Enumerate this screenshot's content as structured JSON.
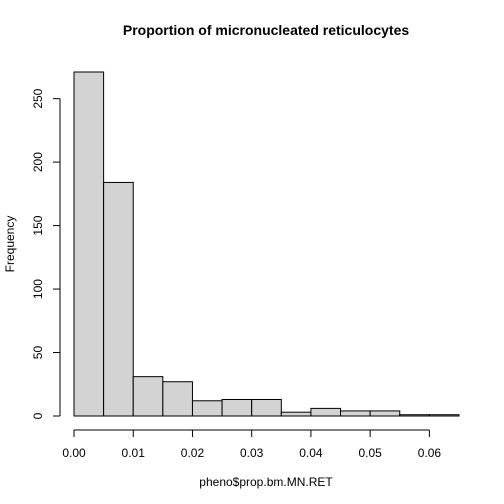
{
  "chart_data": {
    "type": "bar",
    "subtype": "histogram",
    "title": "Proportion of micronucleated reticulocytes",
    "xlabel": "pheno$prop.bm.MN.RET",
    "ylabel": "Frequency",
    "bin_edges": [
      0.0,
      0.005,
      0.01,
      0.015,
      0.02,
      0.025,
      0.03,
      0.035,
      0.04,
      0.045,
      0.05,
      0.055,
      0.06,
      0.065
    ],
    "values": [
      271,
      184,
      31,
      27,
      12,
      13,
      13,
      3,
      6,
      4,
      4,
      1,
      1
    ],
    "xlim": [
      0.0,
      0.065
    ],
    "ylim": [
      0,
      271
    ],
    "x_ticks": [
      0.0,
      0.01,
      0.02,
      0.03,
      0.04,
      0.05,
      0.06
    ],
    "x_tick_labels": [
      "0.00",
      "0.01",
      "0.02",
      "0.03",
      "0.04",
      "0.05",
      "0.06"
    ],
    "y_ticks": [
      0,
      50,
      100,
      150,
      200,
      250
    ],
    "y_tick_labels": [
      "0",
      "50",
      "100",
      "150",
      "200",
      "250"
    ],
    "bar_fill": "#d3d3d3",
    "bar_stroke": "#000000",
    "grid": false,
    "legend": "none"
  }
}
